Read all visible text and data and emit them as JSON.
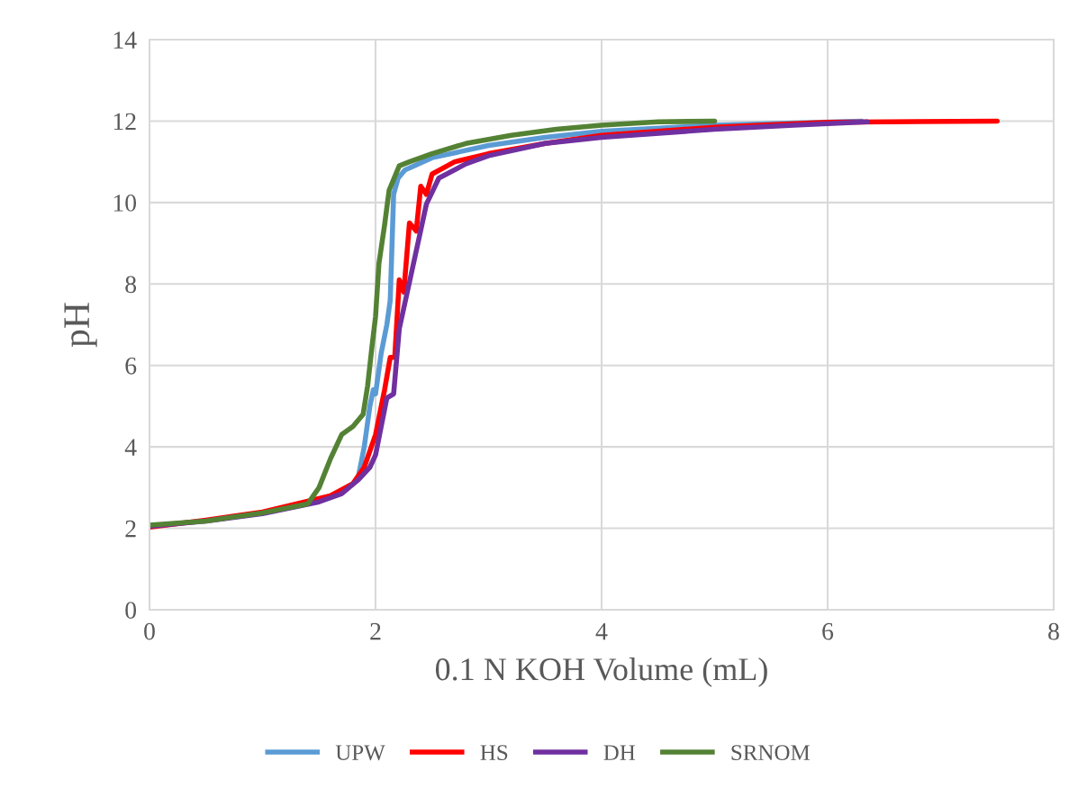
{
  "chart_data": {
    "type": "line",
    "xlabel": "0.1 N KOH Volume (mL)",
    "ylabel": "pH",
    "xlim": [
      0,
      8
    ],
    "ylim": [
      0,
      14
    ],
    "xticks": [
      0,
      2,
      4,
      6,
      8
    ],
    "yticks": [
      0,
      2,
      4,
      6,
      8,
      10,
      12,
      14
    ],
    "grid": true,
    "legend": "bottom",
    "marker": "none",
    "line_style": "solid",
    "series": [
      {
        "name": "UPW",
        "color": "#5b9bd5",
        "x": [
          1.85,
          1.9,
          1.95,
          1.98,
          2.0,
          2.05,
          2.1,
          2.13,
          2.16,
          2.2,
          2.26,
          2.5,
          3.0,
          3.5,
          4.0,
          5.0,
          6.3
        ],
        "values": [
          3.3,
          4.0,
          5.0,
          5.4,
          5.3,
          6.3,
          7.0,
          7.6,
          10.2,
          10.6,
          10.8,
          11.1,
          11.4,
          11.6,
          11.75,
          11.9,
          12.0
        ]
      },
      {
        "name": "HS",
        "color": "#ff0000",
        "x": [
          0,
          0.5,
          1.0,
          1.3,
          1.6,
          1.8,
          1.9,
          2.0,
          2.08,
          2.13,
          2.17,
          2.21,
          2.25,
          2.3,
          2.36,
          2.4,
          2.45,
          2.5,
          2.7,
          3.0,
          3.5,
          4.0,
          5.0,
          6.0,
          7.5
        ],
        "values": [
          2.03,
          2.2,
          2.4,
          2.6,
          2.8,
          3.1,
          3.5,
          4.3,
          5.4,
          6.2,
          6.2,
          8.1,
          7.8,
          9.5,
          9.3,
          10.4,
          10.2,
          10.7,
          11.0,
          11.2,
          11.45,
          11.65,
          11.85,
          11.97,
          12.0
        ]
      },
      {
        "name": "DH",
        "color": "#7030a0",
        "x": [
          0,
          0.5,
          1.0,
          1.5,
          1.7,
          1.85,
          1.95,
          2.0,
          2.05,
          2.1,
          2.16,
          2.21,
          2.32,
          2.45,
          2.56,
          2.8,
          3.0,
          3.5,
          4.0,
          5.0,
          5.7,
          6.35
        ],
        "values": [
          2.05,
          2.18,
          2.36,
          2.65,
          2.85,
          3.2,
          3.5,
          3.8,
          4.5,
          5.2,
          5.3,
          6.9,
          8.3,
          9.96,
          10.6,
          10.95,
          11.15,
          11.45,
          11.6,
          11.8,
          11.9,
          11.98
        ]
      },
      {
        "name": "SRNOM",
        "color": "#548235",
        "x": [
          0,
          0.5,
          1.0,
          1.4,
          1.5,
          1.6,
          1.7,
          1.8,
          1.89,
          1.93,
          1.97,
          2.0,
          2.03,
          2.08,
          2.12,
          2.21,
          2.3,
          2.5,
          2.8,
          3.2,
          3.6,
          4.0,
          4.5,
          5.0
        ],
        "values": [
          2.08,
          2.18,
          2.38,
          2.6,
          3.0,
          3.7,
          4.3,
          4.5,
          4.8,
          5.5,
          6.5,
          7.2,
          8.5,
          9.45,
          10.3,
          10.9,
          11.0,
          11.2,
          11.45,
          11.65,
          11.8,
          11.9,
          11.98,
          12.0
        ]
      }
    ]
  }
}
